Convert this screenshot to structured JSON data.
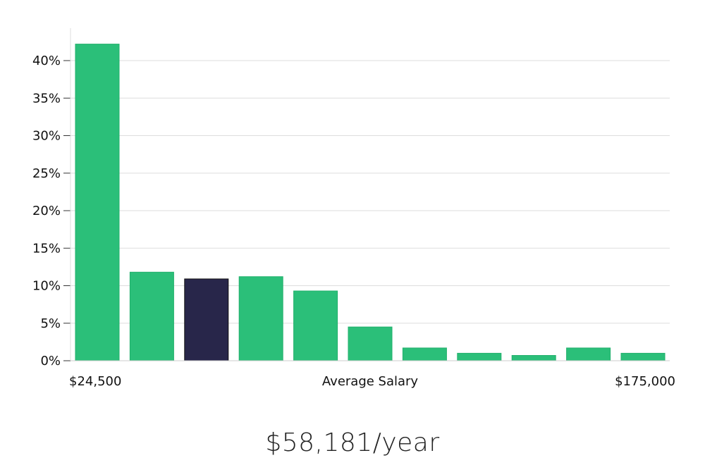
{
  "chart_data": {
    "type": "bar",
    "values": [
      42.2,
      11.8,
      10.9,
      11.2,
      9.3,
      4.5,
      1.7,
      1.0,
      0.7,
      1.7,
      1.0
    ],
    "highlight_index": 2,
    "ylim": [
      0,
      45
    ],
    "yticks": [
      {
        "value": 0,
        "label": "0%"
      },
      {
        "value": 5,
        "label": "5%"
      },
      {
        "value": 10,
        "label": "10%"
      },
      {
        "value": 15,
        "label": "15%"
      },
      {
        "value": 20,
        "label": "20%"
      },
      {
        "value": 25,
        "label": "25%"
      },
      {
        "value": 30,
        "label": "30%"
      },
      {
        "value": 35,
        "label": "35%"
      },
      {
        "value": 40,
        "label": "40%"
      }
    ],
    "x_min_label": "$24,500",
    "xlabel": "Average Salary",
    "x_max_label": "$175,000",
    "grid": true,
    "colors": {
      "bar": "#2bbf79",
      "highlight": "#28264a",
      "grid": "#dddddd"
    }
  },
  "salary_text": "$58,181/year"
}
